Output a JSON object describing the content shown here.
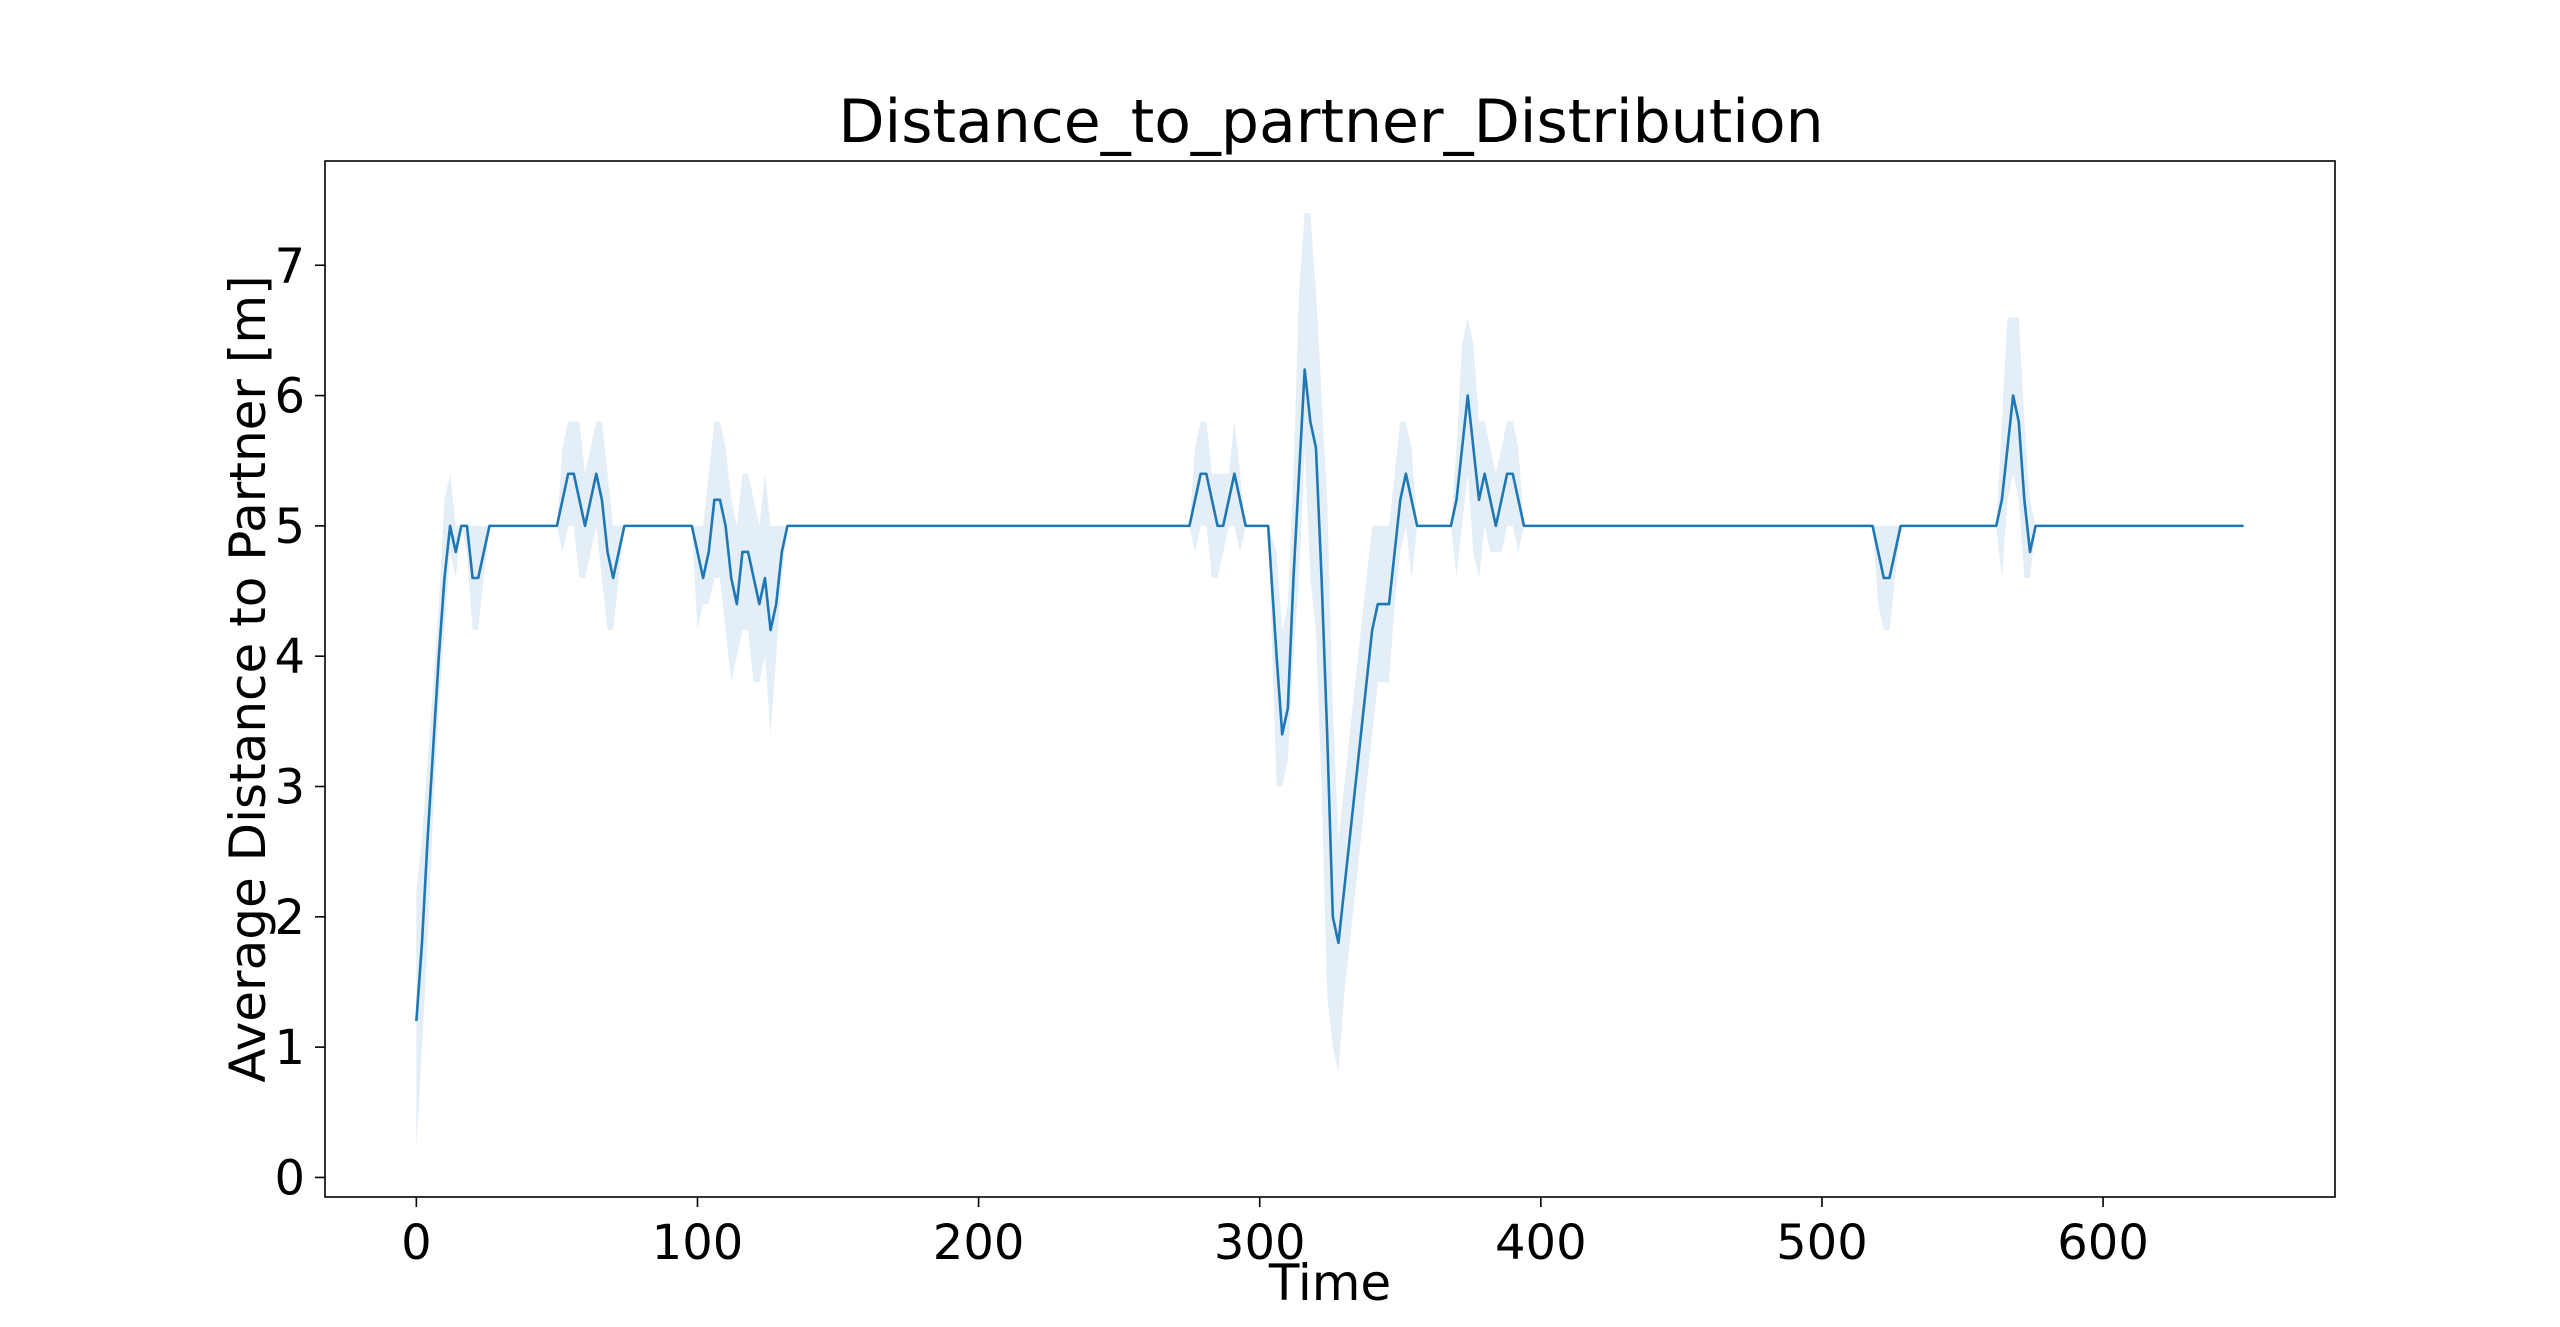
{
  "chart_data": {
    "type": "line",
    "title": "Distance_to_partner_Distribution",
    "xlabel": "Time",
    "ylabel": "Average Distance to Partner [m]",
    "xlim": [
      -32.5,
      682.5
    ],
    "ylim": [
      -0.15,
      7.8
    ],
    "xticks": [
      0,
      100,
      200,
      300,
      400,
      500,
      600
    ],
    "xtick_labels": [
      "0",
      "100",
      "200",
      "300",
      "400",
      "500",
      "600"
    ],
    "yticks": [
      0,
      1,
      2,
      3,
      4,
      5,
      6,
      7
    ],
    "ytick_labels": [
      "0",
      "1",
      "2",
      "3",
      "4",
      "5",
      "6",
      "7"
    ],
    "grid": false,
    "legend": "none",
    "colors": {
      "line": "#1f77b4",
      "band": "#1f77b4",
      "axes": "#000000"
    },
    "series": [
      {
        "points": [
          [
            0,
            1.2
          ],
          [
            2,
            1.8
          ],
          [
            4,
            2.6
          ],
          [
            6,
            3.3
          ],
          [
            8,
            4.0
          ],
          [
            10,
            4.6
          ],
          [
            12,
            5.0
          ],
          [
            14,
            4.8
          ],
          [
            16,
            5.0
          ],
          [
            18,
            5.0
          ],
          [
            20,
            4.6
          ],
          [
            22,
            4.6
          ],
          [
            24,
            4.8
          ],
          [
            26,
            5.0
          ],
          [
            50,
            5.0
          ],
          [
            52,
            5.2
          ],
          [
            54,
            5.4
          ],
          [
            56,
            5.4
          ],
          [
            58,
            5.2
          ],
          [
            60,
            5.0
          ],
          [
            62,
            5.2
          ],
          [
            64,
            5.4
          ],
          [
            66,
            5.2
          ],
          [
            68,
            4.8
          ],
          [
            70,
            4.6
          ],
          [
            72,
            4.8
          ],
          [
            74,
            5.0
          ],
          [
            98,
            5.0
          ],
          [
            100,
            4.8
          ],
          [
            102,
            4.6
          ],
          [
            104,
            4.8
          ],
          [
            106,
            5.2
          ],
          [
            108,
            5.2
          ],
          [
            110,
            5.0
          ],
          [
            112,
            4.6
          ],
          [
            114,
            4.4
          ],
          [
            116,
            4.8
          ],
          [
            118,
            4.8
          ],
          [
            120,
            4.6
          ],
          [
            122,
            4.4
          ],
          [
            124,
            4.6
          ],
          [
            126,
            4.2
          ],
          [
            128,
            4.4
          ],
          [
            130,
            4.8
          ],
          [
            132,
            5.0
          ],
          [
            275,
            5.0
          ],
          [
            277,
            5.2
          ],
          [
            279,
            5.4
          ],
          [
            281,
            5.4
          ],
          [
            283,
            5.2
          ],
          [
            285,
            5.0
          ],
          [
            287,
            5.0
          ],
          [
            289,
            5.2
          ],
          [
            291,
            5.4
          ],
          [
            293,
            5.2
          ],
          [
            295,
            5.0
          ],
          [
            303,
            5.0
          ],
          [
            306,
            4.0
          ],
          [
            308,
            3.4
          ],
          [
            310,
            3.6
          ],
          [
            312,
            4.6
          ],
          [
            314,
            5.4
          ],
          [
            316,
            6.2
          ],
          [
            318,
            5.8
          ],
          [
            320,
            5.6
          ],
          [
            322,
            4.6
          ],
          [
            324,
            3.4
          ],
          [
            326,
            2.0
          ],
          [
            328,
            1.8
          ],
          [
            330,
            2.2
          ],
          [
            332,
            2.6
          ],
          [
            334,
            3.0
          ],
          [
            336,
            3.4
          ],
          [
            338,
            3.8
          ],
          [
            340,
            4.2
          ],
          [
            342,
            4.4
          ],
          [
            346,
            4.4
          ],
          [
            348,
            4.8
          ],
          [
            350,
            5.2
          ],
          [
            352,
            5.4
          ],
          [
            354,
            5.2
          ],
          [
            356,
            5.0
          ],
          [
            368,
            5.0
          ],
          [
            370,
            5.2
          ],
          [
            372,
            5.6
          ],
          [
            374,
            6.0
          ],
          [
            376,
            5.6
          ],
          [
            378,
            5.2
          ],
          [
            380,
            5.4
          ],
          [
            382,
            5.2
          ],
          [
            384,
            5.0
          ],
          [
            386,
            5.2
          ],
          [
            388,
            5.4
          ],
          [
            390,
            5.4
          ],
          [
            392,
            5.2
          ],
          [
            394,
            5.0
          ],
          [
            518,
            5.0
          ],
          [
            520,
            4.8
          ],
          [
            522,
            4.6
          ],
          [
            524,
            4.6
          ],
          [
            526,
            4.8
          ],
          [
            528,
            5.0
          ],
          [
            562,
            5.0
          ],
          [
            564,
            5.2
          ],
          [
            566,
            5.6
          ],
          [
            568,
            6.0
          ],
          [
            570,
            5.8
          ],
          [
            572,
            5.2
          ],
          [
            574,
            4.8
          ],
          [
            576,
            5.0
          ],
          [
            650,
            5.0
          ]
        ],
        "ci_band": [
          [
            0,
            0.2,
            2.2
          ],
          [
            2,
            1.0,
            2.6
          ],
          [
            4,
            1.8,
            3.2
          ],
          [
            6,
            2.8,
            3.8
          ],
          [
            8,
            3.6,
            4.4
          ],
          [
            10,
            4.2,
            5.2
          ],
          [
            12,
            4.8,
            5.4
          ],
          [
            14,
            4.6,
            5.0
          ],
          [
            16,
            5.0,
            5.0
          ],
          [
            18,
            4.8,
            5.0
          ],
          [
            20,
            4.2,
            5.0
          ],
          [
            22,
            4.2,
            5.0
          ],
          [
            24,
            4.6,
            5.0
          ],
          [
            26,
            5.0,
            5.0
          ],
          [
            50,
            5.0,
            5.0
          ],
          [
            52,
            4.8,
            5.6
          ],
          [
            54,
            5.0,
            5.8
          ],
          [
            56,
            5.0,
            5.8
          ],
          [
            58,
            4.6,
            5.8
          ],
          [
            60,
            4.6,
            5.4
          ],
          [
            62,
            4.8,
            5.6
          ],
          [
            64,
            5.0,
            5.8
          ],
          [
            66,
            4.6,
            5.8
          ],
          [
            68,
            4.2,
            5.4
          ],
          [
            70,
            4.2,
            5.0
          ],
          [
            72,
            4.6,
            5.0
          ],
          [
            74,
            5.0,
            5.0
          ],
          [
            98,
            5.0,
            5.0
          ],
          [
            100,
            4.2,
            5.0
          ],
          [
            102,
            4.4,
            5.0
          ],
          [
            104,
            4.4,
            5.4
          ],
          [
            106,
            4.6,
            5.8
          ],
          [
            108,
            4.6,
            5.8
          ],
          [
            110,
            4.2,
            5.6
          ],
          [
            112,
            3.8,
            5.2
          ],
          [
            114,
            4.0,
            5.0
          ],
          [
            116,
            4.2,
            5.4
          ],
          [
            118,
            4.2,
            5.4
          ],
          [
            120,
            3.8,
            5.2
          ],
          [
            122,
            3.8,
            5.0
          ],
          [
            124,
            4.0,
            5.4
          ],
          [
            126,
            3.4,
            5.0
          ],
          [
            128,
            4.0,
            5.0
          ],
          [
            130,
            4.6,
            5.0
          ],
          [
            132,
            5.0,
            5.0
          ],
          [
            275,
            5.0,
            5.0
          ],
          [
            277,
            4.8,
            5.6
          ],
          [
            279,
            5.0,
            5.8
          ],
          [
            281,
            5.0,
            5.8
          ],
          [
            283,
            4.6,
            5.4
          ],
          [
            285,
            4.6,
            5.4
          ],
          [
            287,
            4.8,
            5.4
          ],
          [
            289,
            5.0,
            5.4
          ],
          [
            291,
            5.0,
            5.8
          ],
          [
            293,
            4.8,
            5.4
          ],
          [
            295,
            5.0,
            5.0
          ],
          [
            303,
            5.0,
            5.0
          ],
          [
            306,
            3.0,
            4.8
          ],
          [
            308,
            3.0,
            4.2
          ],
          [
            310,
            3.2,
            4.4
          ],
          [
            312,
            4.0,
            5.4
          ],
          [
            314,
            4.6,
            6.8
          ],
          [
            316,
            5.6,
            7.4
          ],
          [
            318,
            4.6,
            7.4
          ],
          [
            320,
            4.2,
            6.8
          ],
          [
            322,
            3.0,
            6.0
          ],
          [
            324,
            1.4,
            5.2
          ],
          [
            326,
            1.0,
            3.6
          ],
          [
            328,
            0.8,
            2.6
          ],
          [
            330,
            1.4,
            3.0
          ],
          [
            332,
            1.8,
            3.4
          ],
          [
            334,
            2.2,
            3.8
          ],
          [
            336,
            2.6,
            4.2
          ],
          [
            338,
            3.0,
            4.6
          ],
          [
            340,
            3.4,
            5.0
          ],
          [
            342,
            3.8,
            5.0
          ],
          [
            346,
            3.8,
            5.0
          ],
          [
            348,
            4.4,
            5.4
          ],
          [
            350,
            4.8,
            5.8
          ],
          [
            352,
            5.0,
            5.8
          ],
          [
            354,
            4.6,
            5.6
          ],
          [
            356,
            5.0,
            5.0
          ],
          [
            368,
            5.0,
            5.0
          ],
          [
            370,
            4.6,
            5.6
          ],
          [
            372,
            5.0,
            6.4
          ],
          [
            374,
            5.4,
            6.6
          ],
          [
            376,
            4.8,
            6.4
          ],
          [
            378,
            4.6,
            5.8
          ],
          [
            380,
            5.0,
            5.8
          ],
          [
            382,
            4.8,
            5.6
          ],
          [
            384,
            4.8,
            5.4
          ],
          [
            386,
            4.8,
            5.6
          ],
          [
            388,
            5.0,
            5.8
          ],
          [
            390,
            5.0,
            5.8
          ],
          [
            392,
            4.8,
            5.6
          ],
          [
            394,
            5.0,
            5.0
          ],
          [
            518,
            5.0,
            5.0
          ],
          [
            520,
            4.4,
            5.0
          ],
          [
            522,
            4.2,
            5.0
          ],
          [
            524,
            4.2,
            5.0
          ],
          [
            526,
            4.6,
            5.0
          ],
          [
            528,
            5.0,
            5.0
          ],
          [
            562,
            5.0,
            5.0
          ],
          [
            564,
            4.6,
            5.8
          ],
          [
            566,
            5.2,
            6.6
          ],
          [
            568,
            5.4,
            6.6
          ],
          [
            570,
            5.2,
            6.6
          ],
          [
            572,
            4.6,
            5.8
          ],
          [
            574,
            4.6,
            5.2
          ],
          [
            576,
            5.0,
            5.0
          ],
          [
            650,
            5.0,
            5.0
          ]
        ]
      }
    ]
  }
}
